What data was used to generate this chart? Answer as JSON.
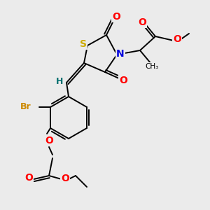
{
  "bg_color": "#ebebeb",
  "atom_colors": {
    "S": "#ccaa00",
    "N": "#0000dd",
    "O": "#ff0000",
    "Br": "#cc8800",
    "H": "#007070",
    "C": "#000000"
  },
  "bond_color": "#000000",
  "lw": 1.4
}
